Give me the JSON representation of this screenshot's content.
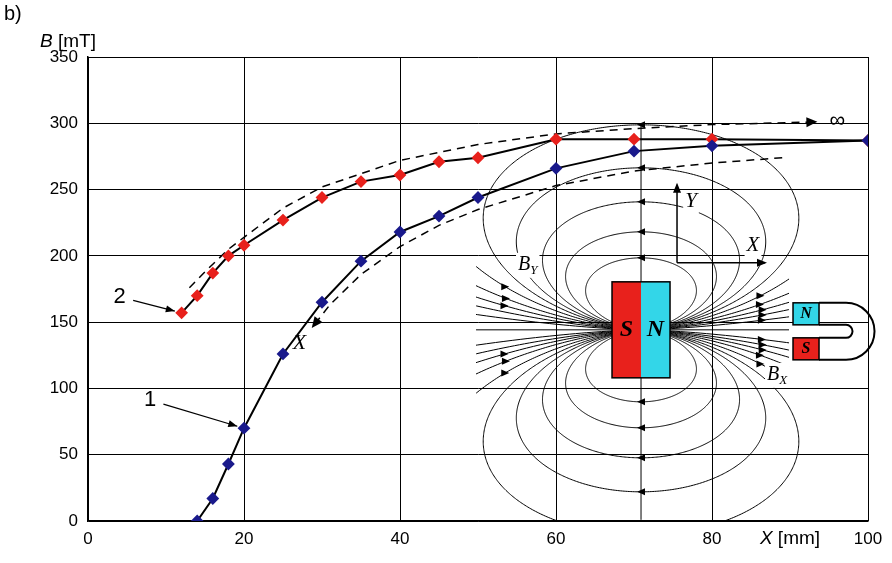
{
  "chart_data": {
    "type": "line",
    "panel_label": "b)",
    "x_label": "X [mm]",
    "y_label": "B [mT]",
    "xlim": [
      0,
      100
    ],
    "xticks": [
      0,
      20,
      40,
      60,
      80,
      100
    ],
    "ylim": [
      0,
      350
    ],
    "yticks": [
      0,
      50,
      100,
      150,
      200,
      250,
      300,
      350
    ],
    "grid": true,
    "series": [
      {
        "name": "1",
        "color": "#1a1a8c",
        "marker": "diamond",
        "line_style": "solid",
        "x": [
          14,
          16,
          18,
          20,
          25,
          30,
          35,
          40,
          45,
          50,
          60,
          70,
          80,
          100
        ],
        "values": [
          0,
          17,
          43,
          70,
          126,
          165,
          196,
          218,
          230,
          244,
          266,
          279,
          283,
          287
        ]
      },
      {
        "name": "2",
        "color": "#e8211c",
        "marker": "diamond",
        "line_style": "solid",
        "x": [
          12,
          14,
          16,
          18,
          20,
          25,
          30,
          35,
          40,
          45,
          50,
          60,
          70,
          80,
          100
        ],
        "values": [
          157,
          170,
          187,
          200,
          208,
          227,
          244,
          256,
          261,
          271,
          274,
          288,
          288,
          288,
          287
        ]
      },
      {
        "name": "∞",
        "color": "#000000",
        "marker": "none",
        "line_style": "dashed",
        "x": [
          13,
          15,
          18,
          20,
          25,
          30,
          40,
          50,
          60,
          70,
          80,
          93
        ],
        "values": [
          176,
          188,
          205,
          214,
          236,
          252,
          272,
          284,
          292,
          296,
          299,
          301
        ]
      },
      {
        "name": "X",
        "color": "#000000",
        "marker": "none",
        "line_style": "dashed",
        "x": [
          89,
          80,
          70,
          60,
          50,
          45,
          40,
          35,
          31,
          29
        ],
        "values": [
          274,
          270,
          264,
          253,
          235,
          223,
          207,
          186,
          163,
          148
        ]
      }
    ],
    "inset": {
      "magnet": {
        "left": "S",
        "right": "N"
      },
      "axes": {
        "x": "X",
        "y": "Y"
      },
      "field_labels": [
        {
          "text": "B",
          "subscript": "Y"
        },
        {
          "text": "B",
          "subscript": "X"
        }
      ],
      "probe": {
        "top": "N",
        "bottom": "S"
      }
    }
  }
}
